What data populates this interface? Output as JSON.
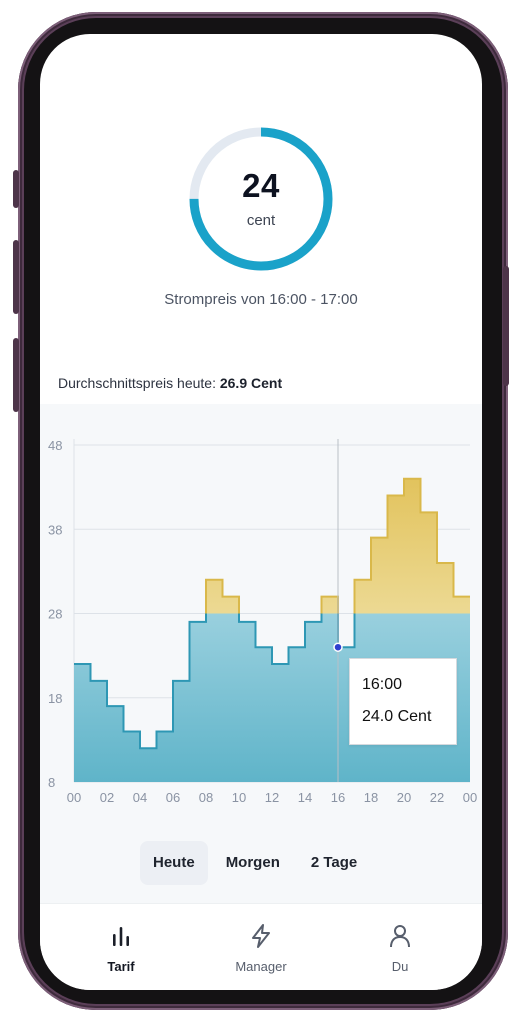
{
  "ring": {
    "value": "24",
    "unit": "cent",
    "fill_fraction": 0.75,
    "caption": "Strompreis von 16:00 - 17:00",
    "track_color": "#e3e9f1",
    "fill_color": "#1aa2c9"
  },
  "average": {
    "label": "Durchschnittspreis heute:",
    "value": "26.9 Cent"
  },
  "chart_data": {
    "type": "area",
    "title": "",
    "xlabel": "",
    "ylabel": "",
    "x_ticks": [
      "00",
      "02",
      "04",
      "06",
      "08",
      "10",
      "12",
      "14",
      "16",
      "18",
      "20",
      "22",
      "00"
    ],
    "y_ticks": [
      "8",
      "18",
      "28",
      "38",
      "48"
    ],
    "xlim": [
      0,
      24
    ],
    "ylim": [
      8,
      48
    ],
    "grid": true,
    "step": true,
    "hours": [
      0,
      1,
      2,
      3,
      4,
      5,
      6,
      7,
      8,
      9,
      10,
      11,
      12,
      13,
      14,
      15,
      16,
      17,
      18,
      19,
      20,
      21,
      22,
      23
    ],
    "values": [
      22,
      20,
      17,
      14,
      12,
      14,
      20,
      27,
      32,
      30,
      27,
      24,
      22,
      24,
      27,
      30,
      24,
      32,
      37,
      42,
      44,
      40,
      34,
      30
    ],
    "highlight_threshold": 28,
    "selected_hour": 16,
    "low_color": "#2e97b4",
    "high_color": "#d9b84a"
  },
  "tooltip": {
    "time": "16:00",
    "price": "24.0 Cent"
  },
  "tabs": [
    {
      "label": "Heute",
      "active": true
    },
    {
      "label": "Morgen",
      "active": false
    },
    {
      "label": "2 Tage",
      "active": false
    }
  ],
  "nav": [
    {
      "label": "Tarif",
      "icon": "bar-chart-icon",
      "active": true
    },
    {
      "label": "Manager",
      "icon": "lightning-icon",
      "active": false
    },
    {
      "label": "Du",
      "icon": "user-icon",
      "active": false
    }
  ]
}
